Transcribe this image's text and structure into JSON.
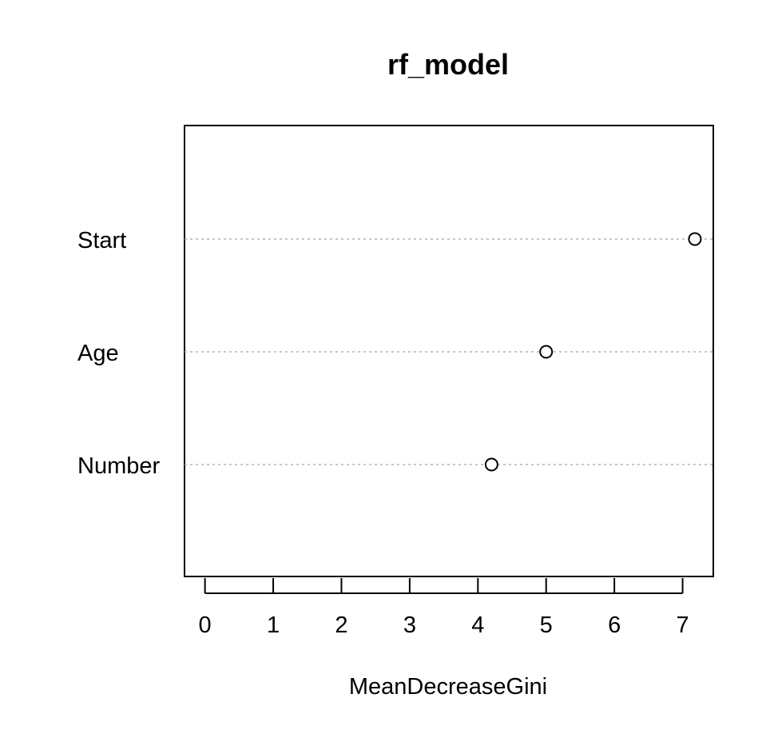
{
  "chart_data": {
    "type": "scatter",
    "title": "rf_model",
    "xlabel": "MeanDecreaseGini",
    "ylabel": "",
    "categories": [
      "Start",
      "Age",
      "Number"
    ],
    "values": [
      7.18,
      5.0,
      4.2
    ],
    "xlim": [
      -0.3,
      7.45
    ],
    "x_ticks": [
      0,
      1,
      2,
      3,
      4,
      5,
      6,
      7
    ],
    "x_tick_labels": [
      "0",
      "1",
      "2",
      "3",
      "4",
      "5",
      "6",
      "7"
    ],
    "grid": "dotted horizontal guide lines per category",
    "legend": "none",
    "marker": "open-circle",
    "colors": {
      "marker_stroke": "#000000",
      "marker_fill": "#ffffff",
      "guide_line": "#b3b3b3",
      "axis": "#000000"
    }
  }
}
